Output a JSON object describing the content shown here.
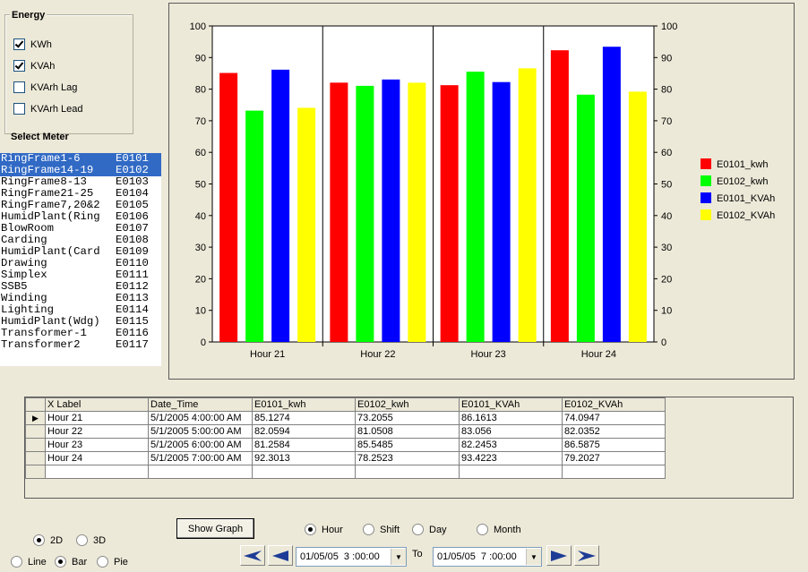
{
  "energy": {
    "title": "Energy",
    "options": [
      {
        "label": "KWh",
        "checked": true
      },
      {
        "label": "KVAh",
        "checked": true
      },
      {
        "label": "KVArh Lag",
        "checked": false
      },
      {
        "label": "KVArh Lead",
        "checked": false
      }
    ]
  },
  "select_meter_label": "Select Meter",
  "meters": [
    {
      "name": "RingFrame1-6",
      "code": "E0101",
      "selected": true
    },
    {
      "name": "RingFrame14-19",
      "code": "E0102",
      "selected": true
    },
    {
      "name": "RingFrame8-13",
      "code": "E0103",
      "selected": false
    },
    {
      "name": "RingFrame21-25",
      "code": "E0104",
      "selected": false
    },
    {
      "name": "RingFrame7,20&2",
      "code": "E0105",
      "selected": false
    },
    {
      "name": "HumidPlant(Ring",
      "code": "E0106",
      "selected": false
    },
    {
      "name": "BlowRoom",
      "code": "E0107",
      "selected": false
    },
    {
      "name": "Carding",
      "code": "E0108",
      "selected": false
    },
    {
      "name": "HumidPlant(Card",
      "code": "E0109",
      "selected": false
    },
    {
      "name": "Drawing",
      "code": "E0110",
      "selected": false
    },
    {
      "name": "Simplex",
      "code": "E0111",
      "selected": false
    },
    {
      "name": "SSB5",
      "code": "E0112",
      "selected": false
    },
    {
      "name": "Winding",
      "code": "E0113",
      "selected": false
    },
    {
      "name": "Lighting",
      "code": "E0114",
      "selected": false
    },
    {
      "name": "HumidPlant(Wdg)",
      "code": "E0115",
      "selected": false
    },
    {
      "name": "Transformer-1",
      "code": "E0116",
      "selected": false
    },
    {
      "name": "Transformer2",
      "code": "E0117",
      "selected": false
    }
  ],
  "chart_data": {
    "type": "bar",
    "categories": [
      "Hour 21",
      "Hour 22",
      "Hour 23",
      "Hour 24"
    ],
    "series": [
      {
        "name": "E0101_kwh",
        "color": "#ff0000",
        "values": [
          85.1274,
          82.0594,
          81.2584,
          92.3013
        ]
      },
      {
        "name": "E0102_kwh",
        "color": "#00ff00",
        "values": [
          73.2055,
          81.0508,
          85.5485,
          78.2523
        ]
      },
      {
        "name": "E0101_KVAh",
        "color": "#0000ff",
        "values": [
          86.1613,
          83.056,
          82.2453,
          93.4223
        ]
      },
      {
        "name": "E0102_KVAh",
        "color": "#ffff00",
        "values": [
          74.0947,
          82.0352,
          86.5875,
          79.2027
        ]
      }
    ],
    "ylim": [
      0,
      100
    ],
    "yticks": [
      "0",
      "10",
      "20",
      "30",
      "40",
      "50",
      "60",
      "70",
      "80",
      "90",
      "100"
    ],
    "legend_position": "right",
    "grid": true
  },
  "table": {
    "columns": [
      "X Label",
      "Date_Time",
      "E0101_kwh",
      "E0102_kwh",
      "E0101_KVAh",
      "E0102_KVAh"
    ],
    "rows": [
      [
        "Hour 21",
        "5/1/2005 4:00:00 AM",
        "85.1274",
        "73.2055",
        "86.1613",
        "74.0947"
      ],
      [
        "Hour 22",
        "5/1/2005 5:00:00 AM",
        "82.0594",
        "81.0508",
        "83.056",
        "82.0352"
      ],
      [
        "Hour 23",
        "5/1/2005 6:00:00 AM",
        "81.2584",
        "85.5485",
        "82.2453",
        "86.5875"
      ],
      [
        "Hour 24",
        "5/1/2005 7:00:00 AM",
        "92.3013",
        "78.2523",
        "93.4223",
        "79.2027"
      ]
    ],
    "current_row_marker": "▶"
  },
  "controls": {
    "show_graph_label": "Show Graph",
    "dimension": [
      {
        "label": "2D",
        "on": true
      },
      {
        "label": "3D",
        "on": false
      }
    ],
    "chart_type": [
      {
        "label": "Line",
        "on": false
      },
      {
        "label": "Bar",
        "on": true
      },
      {
        "label": "Pie",
        "on": false
      }
    ],
    "interval": [
      {
        "label": "Hour",
        "on": true
      },
      {
        "label": "Shift",
        "on": false
      },
      {
        "label": "Day",
        "on": false
      },
      {
        "label": "Month",
        "on": false
      }
    ],
    "from_date": "01/05/05  3 :00:00",
    "to_label": "To",
    "to_date": "01/05/05  7 :00:00",
    "colors": {
      "nav_arrow": "#1e3c96"
    }
  }
}
